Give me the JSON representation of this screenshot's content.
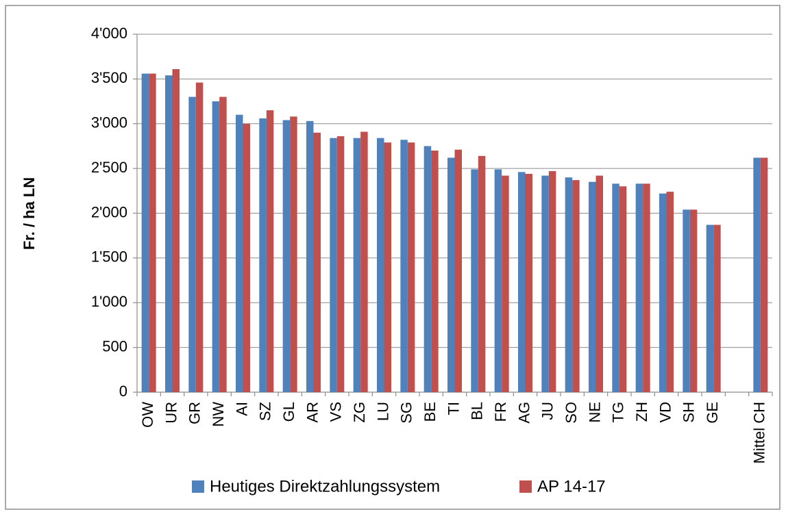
{
  "chart_data": {
    "type": "bar",
    "ylabel": "Fr. / ha LN",
    "categories": [
      "OW",
      "UR",
      "GR",
      "NW",
      "AI",
      "SZ",
      "GL",
      "AR",
      "VS",
      "ZG",
      "LU",
      "SG",
      "BE",
      "TI",
      "BL",
      "FR",
      "AG",
      "JU",
      "SO",
      "NE",
      "TG",
      "ZH",
      "VD",
      "SH",
      "GE",
      null,
      "Mittel CH"
    ],
    "series": [
      {
        "name": "Heutiges Direktzahlungssystem",
        "color": "#4f81bd",
        "values": [
          3560,
          3540,
          3300,
          3250,
          3100,
          3060,
          3040,
          3030,
          2840,
          2840,
          2840,
          2820,
          2750,
          2620,
          2490,
          2490,
          2460,
          2420,
          2400,
          2350,
          2330,
          2330,
          2220,
          2040,
          1870,
          null,
          2620
        ]
      },
      {
        "name": "AP 14-17",
        "color": "#c0504d",
        "values": [
          3560,
          3610,
          3460,
          3300,
          3000,
          3150,
          3080,
          2900,
          2860,
          2910,
          2790,
          2790,
          2700,
          2710,
          2640,
          2420,
          2440,
          2470,
          2370,
          2420,
          2300,
          2330,
          2240,
          2040,
          1870,
          null,
          2620
        ]
      }
    ],
    "ylim": [
      0,
      4000
    ],
    "yticks": [
      0,
      500,
      {
        "value": 1000,
        "label": "1'000"
      },
      {
        "value": 1500,
        "label": "1'500"
      },
      {
        "value": 2000,
        "label": "2'000"
      },
      {
        "value": 2500,
        "label": "2'500"
      },
      {
        "value": 3000,
        "label": "3'000"
      },
      {
        "value": 3500,
        "label": "3'500"
      },
      {
        "value": 4000,
        "label": "4'000"
      }
    ],
    "grid": true,
    "legend": "bottom"
  }
}
